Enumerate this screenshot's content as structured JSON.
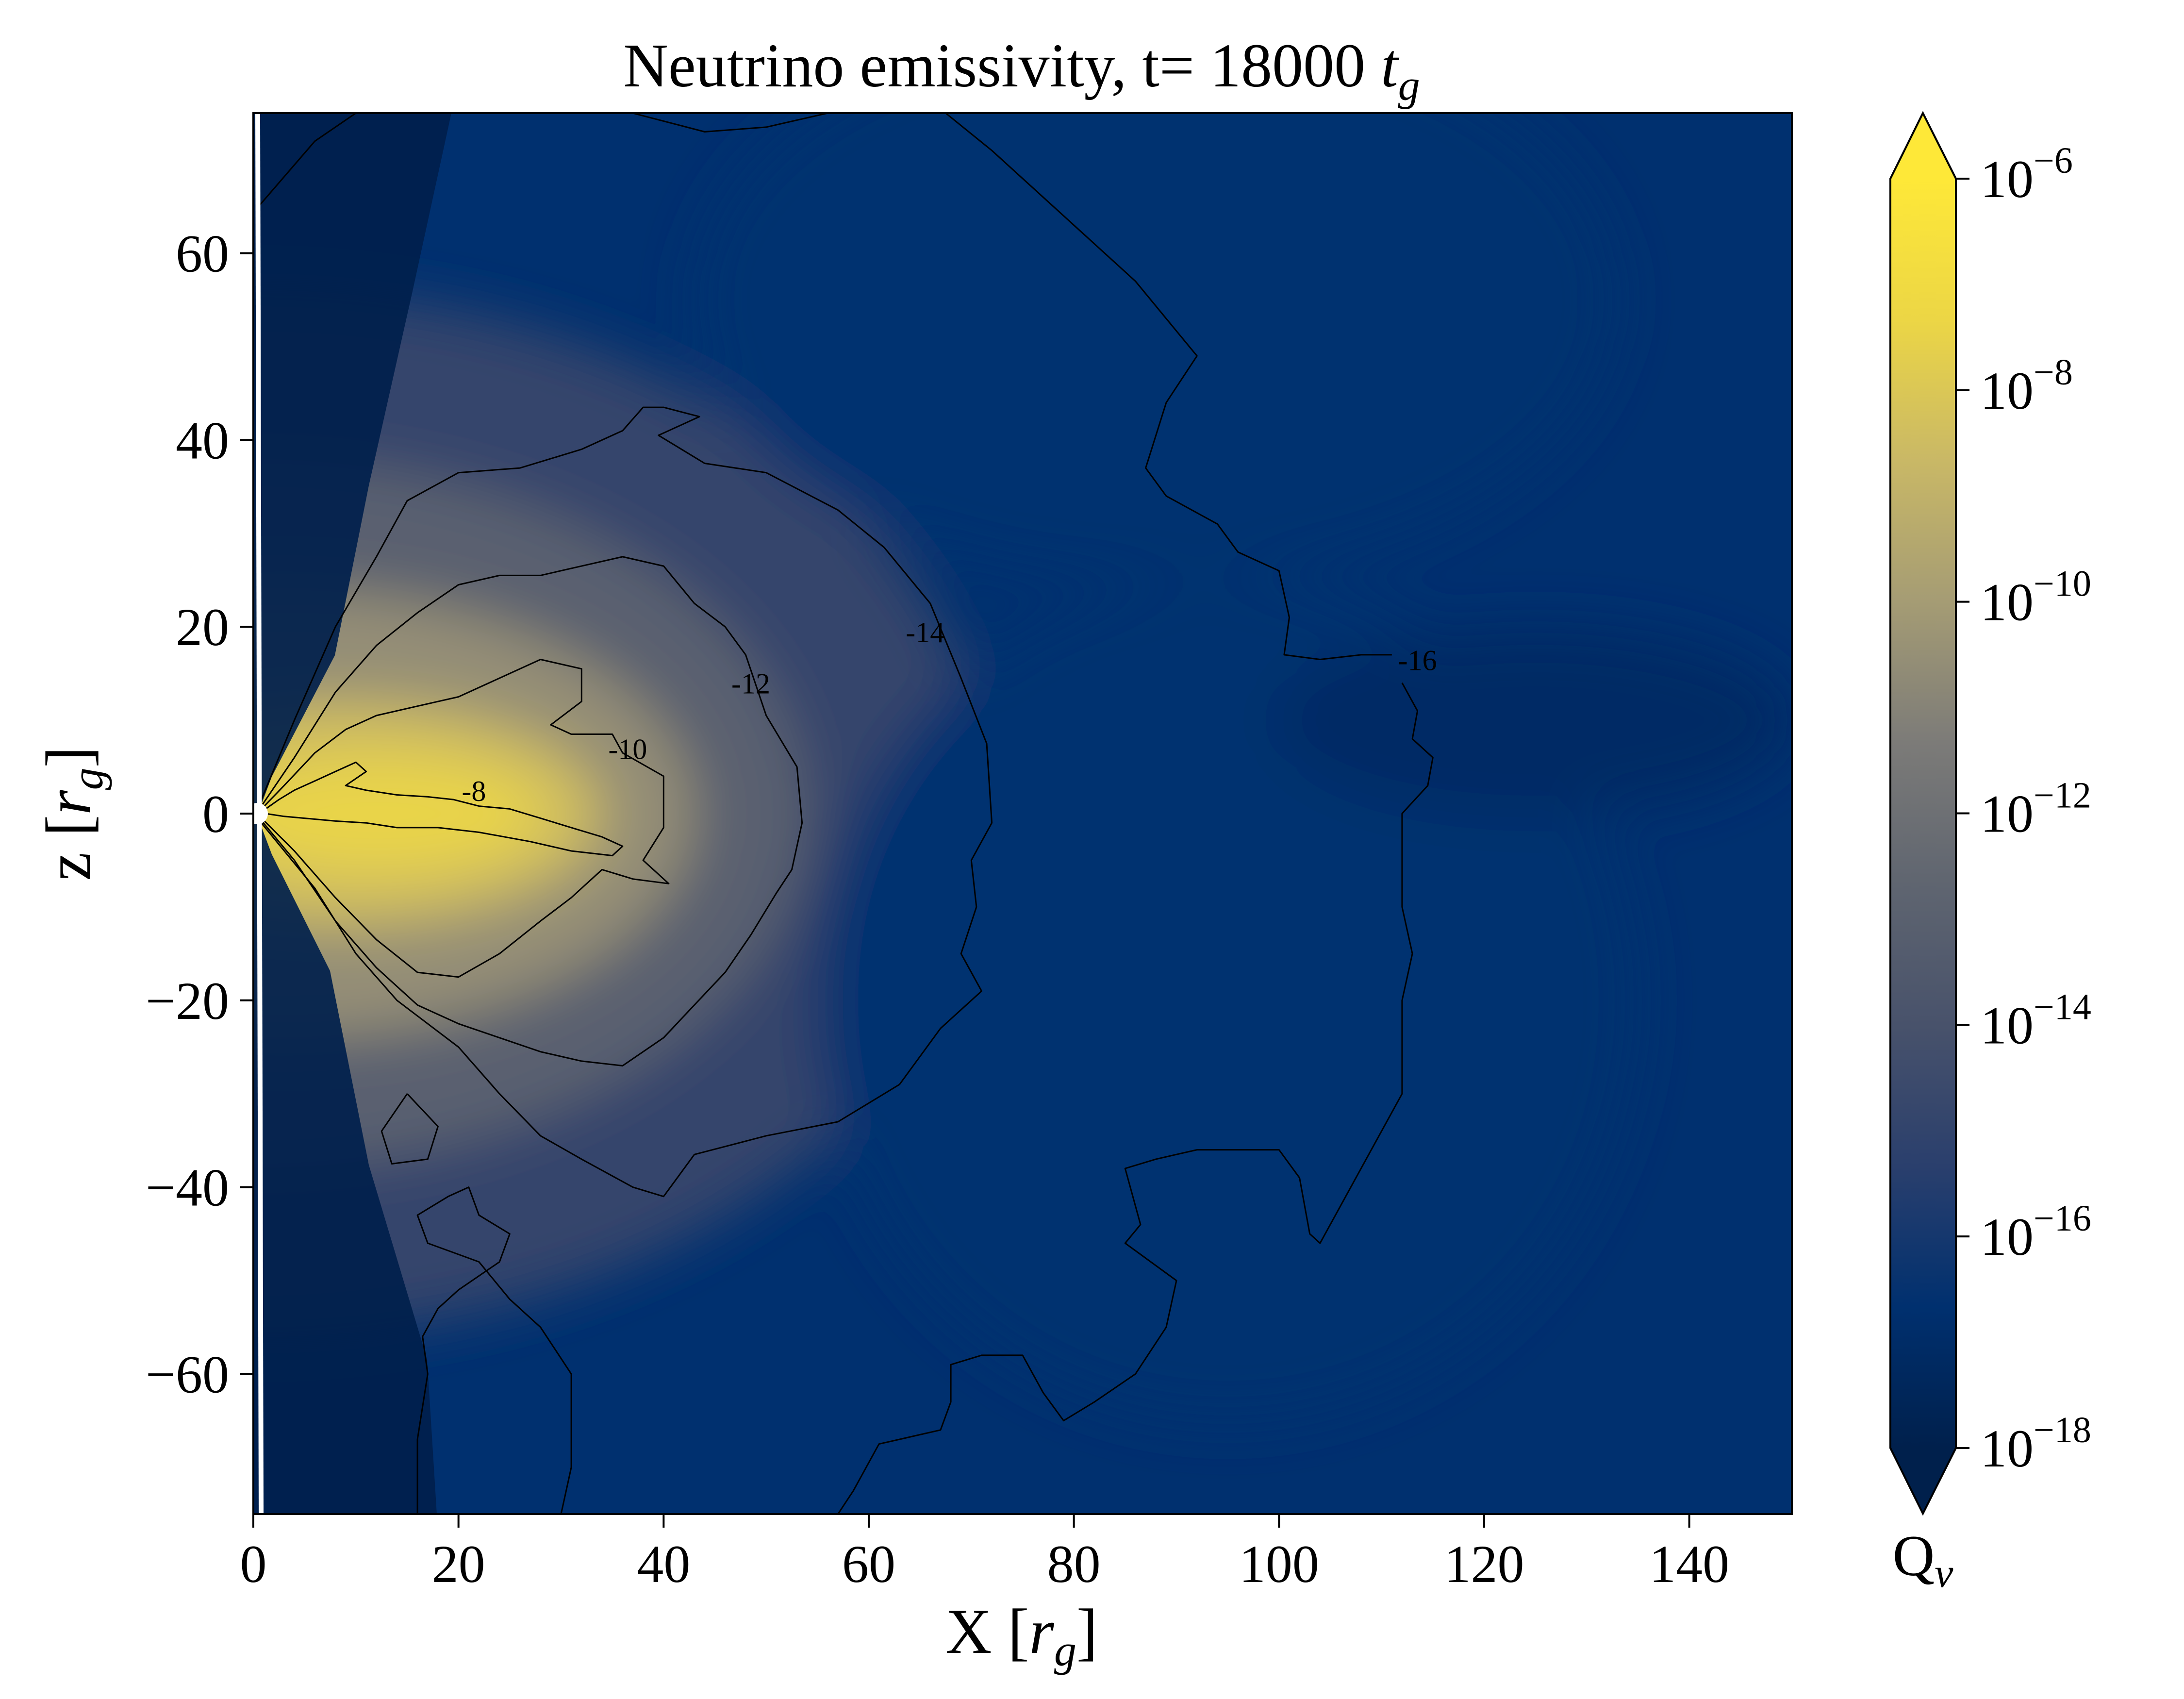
{
  "chart_data": {
    "type": "heatmap",
    "title": "Neutrino emissivity, t= 18000 t_g",
    "title_parts": {
      "prefix": "Neutrino emissivity, t= 18000 ",
      "symbol": "t",
      "subscript": "g"
    },
    "xlabel": "X [r_g]",
    "xlabel_parts": {
      "prefix": "X [",
      "symbol": "r",
      "subscript": "g",
      "suffix": "]"
    },
    "ylabel": "z [r_g]",
    "ylabel_parts": {
      "prefix": "z [",
      "symbol": "r",
      "subscript": "g",
      "suffix": "]"
    },
    "xlim": [
      0,
      150
    ],
    "ylim": [
      -75,
      75
    ],
    "x_ticks": [
      0,
      20,
      40,
      60,
      80,
      100,
      120,
      140
    ],
    "x_tick_labels": [
      "0",
      "20",
      "40",
      "60",
      "80",
      "100",
      "120",
      "140"
    ],
    "y_ticks": [
      -60,
      -40,
      -20,
      0,
      20,
      40,
      60
    ],
    "y_tick_labels": [
      "−60",
      "−40",
      "−20",
      "0",
      "20",
      "40",
      "60"
    ],
    "grid": false,
    "colorbar": {
      "label": "Q_ν",
      "label_parts": {
        "symbol": "Q",
        "subscript": "ν"
      },
      "scale": "log",
      "range": [
        -18,
        -6
      ],
      "extend": "both",
      "ticks": [
        -6,
        -8,
        -10,
        -12,
        -14,
        -16,
        -18
      ],
      "tick_labels": [
        {
          "base": "10",
          "exp": "−6"
        },
        {
          "base": "10",
          "exp": "−8"
        },
        {
          "base": "10",
          "exp": "−10"
        },
        {
          "base": "10",
          "exp": "−12"
        },
        {
          "base": "10",
          "exp": "−14"
        },
        {
          "base": "10",
          "exp": "−16"
        },
        {
          "base": "10",
          "exp": "−18"
        }
      ],
      "colormap": "cividis",
      "colors": [
        "#00204c",
        "#00306f",
        "#2a3f6d",
        "#48526b",
        "#5f6570",
        "#7c7b78",
        "#a59c74",
        "#c9b866",
        "#ecd645",
        "#fee838"
      ]
    },
    "contour_labels": [
      {
        "text": "-8",
        "x": 21.5,
        "y": 2.5
      },
      {
        "text": "-10",
        "x": 36.5,
        "y": 7.0
      },
      {
        "text": "-12",
        "x": 48.5,
        "y": 14.0
      },
      {
        "text": "-14",
        "x": 65.5,
        "y": 19.5
      },
      {
        "text": "-16",
        "x": 113.5,
        "y": 16.5
      }
    ],
    "contours": [
      {
        "level": -8,
        "points": [
          [
            1.2,
            0.5
          ],
          [
            2.5,
            1.5
          ],
          [
            4,
            2.5
          ],
          [
            6,
            3.5
          ],
          [
            8,
            4.5
          ],
          [
            10,
            5.5
          ],
          [
            11,
            4.5
          ],
          [
            9,
            3
          ],
          [
            11,
            2.5
          ],
          [
            14,
            2
          ],
          [
            17,
            1.8
          ],
          [
            19.5,
            1.5
          ],
          [
            22,
            0.8
          ],
          [
            25,
            0.5
          ],
          [
            28,
            -0.5
          ],
          [
            31,
            -1.5
          ],
          [
            34,
            -2.5
          ],
          [
            36,
            -3.5
          ],
          [
            35,
            -4.5
          ],
          [
            31,
            -4
          ],
          [
            27,
            -3
          ],
          [
            22,
            -2
          ],
          [
            18,
            -1.5
          ],
          [
            14,
            -1.5
          ],
          [
            11,
            -1
          ],
          [
            8,
            -0.8
          ],
          [
            5,
            -0.5
          ],
          [
            3,
            -0.3
          ],
          [
            1.2,
            0
          ]
        ]
      },
      {
        "level": -10,
        "points": [
          [
            0.8,
            0.5
          ],
          [
            3,
            3
          ],
          [
            6,
            6.5
          ],
          [
            9,
            9
          ],
          [
            12,
            10.5
          ],
          [
            16,
            11.5
          ],
          [
            20,
            12.5
          ],
          [
            24,
            14.5
          ],
          [
            28,
            16.5
          ],
          [
            32,
            15.5
          ],
          [
            32,
            12
          ],
          [
            29,
            9.5
          ],
          [
            31,
            8.5
          ],
          [
            35,
            8.5
          ],
          [
            36,
            6.5
          ],
          [
            40,
            4
          ],
          [
            40,
            -1.5
          ],
          [
            38,
            -5
          ],
          [
            40.5,
            -7.5
          ],
          [
            37,
            -7
          ],
          [
            34,
            -6
          ],
          [
            31,
            -9
          ],
          [
            28,
            -11.5
          ],
          [
            24,
            -15
          ],
          [
            20,
            -17.5
          ],
          [
            16,
            -17
          ],
          [
            12,
            -13.5
          ],
          [
            8,
            -9
          ],
          [
            4,
            -4
          ],
          [
            0.8,
            -0.5
          ]
        ]
      },
      {
        "level": -12,
        "points": [
          [
            0.6,
            0.5
          ],
          [
            4,
            6
          ],
          [
            8,
            13
          ],
          [
            12,
            18
          ],
          [
            16,
            21.5
          ],
          [
            20,
            24.5
          ],
          [
            24,
            25.5
          ],
          [
            28,
            25.5
          ],
          [
            32,
            26.5
          ],
          [
            36,
            27.5
          ],
          [
            40,
            26.5
          ],
          [
            43,
            22.5
          ],
          [
            46,
            20
          ],
          [
            48,
            17
          ],
          [
            50,
            10.5
          ],
          [
            53,
            5
          ],
          [
            53.5,
            -1
          ],
          [
            52.5,
            -6
          ],
          [
            51,
            -8.5
          ],
          [
            48.5,
            -13
          ],
          [
            46,
            -17
          ],
          [
            43,
            -20.5
          ],
          [
            40,
            -24
          ],
          [
            36,
            -27
          ],
          [
            32,
            -26.5
          ],
          [
            28,
            -25.5
          ],
          [
            24,
            -24
          ],
          [
            20,
            -22.5
          ],
          [
            16,
            -20.5
          ],
          [
            12,
            -16.5
          ],
          [
            8,
            -11.5
          ],
          [
            4,
            -5
          ],
          [
            0.6,
            -0.5
          ]
        ]
      },
      {
        "level": -14,
        "points": [
          [
            0.4,
            0.5
          ],
          [
            4,
            10
          ],
          [
            8,
            20
          ],
          [
            12,
            27.5
          ],
          [
            15,
            33.5
          ],
          [
            20,
            36.5
          ],
          [
            26,
            37
          ],
          [
            32,
            39
          ],
          [
            36,
            41
          ],
          [
            38,
            43.5
          ],
          [
            40,
            43.5
          ],
          [
            43.5,
            42.5
          ],
          [
            39.5,
            40.5
          ],
          [
            44,
            37.5
          ],
          [
            50,
            36.5
          ],
          [
            57,
            32.5
          ],
          [
            61.5,
            28.5
          ],
          [
            66,
            22.5
          ],
          [
            69,
            14.5
          ],
          [
            71.5,
            7.5
          ],
          [
            72,
            -1
          ],
          [
            70,
            -5
          ],
          [
            70.5,
            -10
          ],
          [
            69,
            -15
          ],
          [
            71,
            -19
          ],
          [
            67,
            -23
          ],
          [
            63,
            -29
          ],
          [
            57,
            -33
          ],
          [
            50,
            -34.5
          ],
          [
            43,
            -36.5
          ],
          [
            40,
            -41
          ],
          [
            37,
            -40
          ],
          [
            32,
            -37
          ],
          [
            28,
            -34.5
          ],
          [
            24,
            -30
          ],
          [
            20,
            -25
          ],
          [
            14,
            -20
          ],
          [
            10,
            -15
          ],
          [
            6,
            -8
          ],
          [
            0.4,
            -0.5
          ]
        ]
      },
      {
        "level": -16,
        "points": [
          [
            0.5,
            65
          ],
          [
            6,
            72
          ],
          [
            10,
            75
          ]
        ]
      },
      {
        "level": -16,
        "points": [
          [
            37,
            75
          ],
          [
            44,
            73
          ],
          [
            50,
            73.5
          ],
          [
            56,
            75
          ]
        ]
      },
      {
        "level": -16,
        "points": [
          [
            67.5,
            75
          ],
          [
            72,
            71
          ],
          [
            76,
            67
          ],
          [
            80,
            63
          ],
          [
            86,
            57
          ],
          [
            89,
            53
          ],
          [
            92,
            49
          ],
          [
            89,
            44
          ],
          [
            87,
            37
          ],
          [
            89,
            34
          ],
          [
            94,
            31
          ],
          [
            96,
            28
          ],
          [
            100,
            26
          ],
          [
            101,
            21
          ],
          [
            100.5,
            17
          ],
          [
            104,
            16.5
          ],
          [
            108,
            17
          ],
          [
            111,
            17
          ]
        ]
      },
      {
        "level": -16,
        "points": [
          [
            112,
            14
          ],
          [
            113.5,
            11
          ],
          [
            113,
            8
          ],
          [
            115,
            6
          ],
          [
            114.5,
            3
          ],
          [
            112,
            0
          ],
          [
            112,
            -5
          ],
          [
            112,
            -10
          ],
          [
            113,
            -15
          ],
          [
            112,
            -20
          ],
          [
            112,
            -25
          ],
          [
            112,
            -30
          ],
          [
            109,
            -36
          ],
          [
            106,
            -42
          ],
          [
            104,
            -46
          ],
          [
            103,
            -45
          ],
          [
            102,
            -39
          ],
          [
            100,
            -36
          ],
          [
            92,
            -36
          ],
          [
            88,
            -37
          ],
          [
            85,
            -38
          ],
          [
            86.5,
            -44
          ],
          [
            85,
            -46
          ],
          [
            90,
            -50
          ],
          [
            89,
            -55
          ],
          [
            86,
            -60
          ],
          [
            82,
            -63
          ],
          [
            79,
            -65
          ],
          [
            77,
            -62
          ],
          [
            75,
            -58
          ],
          [
            71,
            -58
          ],
          [
            68,
            -59
          ],
          [
            68,
            -63
          ],
          [
            67,
            -66
          ],
          [
            63,
            -67
          ],
          [
            61,
            -67.5
          ],
          [
            58.5,
            -72.5
          ],
          [
            57,
            -75
          ]
        ]
      },
      {
        "level": -16,
        "points": [
          [
            30,
            -75
          ],
          [
            31,
            -70
          ],
          [
            31,
            -65
          ],
          [
            31,
            -60
          ],
          [
            28,
            -55
          ],
          [
            25,
            -52
          ],
          [
            22,
            -48
          ],
          [
            17,
            -46
          ],
          [
            16,
            -43
          ],
          [
            19,
            -41
          ],
          [
            21,
            -40
          ],
          [
            22,
            -43
          ],
          [
            25,
            -45
          ],
          [
            24,
            -48
          ],
          [
            20,
            -51
          ],
          [
            18,
            -53
          ],
          [
            16.5,
            -56
          ],
          [
            17,
            -60
          ],
          [
            16,
            -67
          ],
          [
            16,
            -72
          ],
          [
            16,
            -75
          ]
        ]
      },
      {
        "level": -16,
        "points": [
          [
            15,
            -30
          ],
          [
            18,
            -33.5
          ],
          [
            17,
            -37
          ],
          [
            13.5,
            -37.5
          ],
          [
            12.5,
            -34
          ],
          [
            15,
            -30
          ]
        ]
      }
    ],
    "blobs": [
      {
        "cx": 0,
        "cy": 0,
        "rx": 72,
        "ry": 56,
        "intensity": 0.26
      },
      {
        "cx": 0,
        "cy": 0,
        "rx": 54,
        "ry": 38,
        "intensity": 0.42
      },
      {
        "cx": 3,
        "cy": 0,
        "rx": 40,
        "ry": 24,
        "intensity": 0.62
      },
      {
        "cx": 8,
        "cy": 0,
        "rx": 26,
        "ry": 12,
        "intensity": 0.8
      },
      {
        "cx": 12,
        "cy": 0,
        "rx": 16,
        "ry": 6,
        "intensity": 0.88
      },
      {
        "cx": 88,
        "cy": 55,
        "rx": 45,
        "ry": 30,
        "intensity": 0.12
      },
      {
        "cx": 95,
        "cy": -20,
        "rx": 40,
        "ry": 45,
        "intensity": 0.12
      },
      {
        "cx": 125,
        "cy": 10,
        "rx": 25,
        "ry": 10,
        "intensity": 0.08
      }
    ]
  }
}
